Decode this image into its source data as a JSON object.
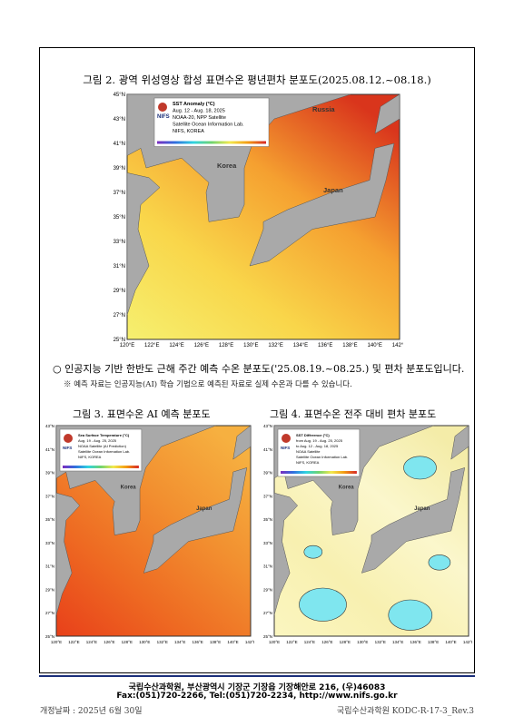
{
  "figure2": {
    "caption": "그림 2. 광역 위성영상 합성 표면수온 평년편차 분포도(2025.08.12.~08.18.)",
    "map": {
      "logo": "NIFS",
      "legend": [
        "SST Anomaly (°C)",
        "Aug. 12 - Aug. 18, 2025",
        "NOAA-20, NPP Satellite",
        "Satellite Ocean Information Lab.",
        "NIFS, KOREA"
      ],
      "places": [
        "Russia",
        "Korea",
        "Japan"
      ],
      "lat_ticks": [
        "45°N",
        "43°N",
        "41°N",
        "39°N",
        "37°N",
        "35°N",
        "33°N",
        "31°N",
        "29°N",
        "27°N",
        "25°N"
      ],
      "lon_ticks": [
        "120°E",
        "122°E",
        "124°E",
        "126°E",
        "128°E",
        "130°E",
        "132°E",
        "134°E",
        "136°E",
        "138°E",
        "140°E",
        "142°E"
      ]
    }
  },
  "bullet": {
    "text": "인공지능 기반 한반도 근해 주간 예측 수온 분포도('25.08.19.~08.25.) 및 편차 분포도입니다.",
    "note": "※ 예측 자료는 인공지능(AI) 학습 기법으로 예측된 자료로 실제 수온과 다를 수 있습니다."
  },
  "figure3": {
    "caption": "그림 3. 표면수온 AI 예측 분포도",
    "map": {
      "logo": "NIFS",
      "legend": [
        "Sea Surface Temperature (°C)",
        "Aug. 19 - Aug. 25, 2025",
        "NOAA Satellite (AI Prediction)",
        "Satellite Ocean Information Lab.",
        "NIFS, KOREA"
      ],
      "places": [
        "Korea",
        "Japan"
      ],
      "lat_ticks": [
        "43°N",
        "41°N",
        "39°N",
        "37°N",
        "35°N",
        "33°N",
        "31°N",
        "29°N",
        "27°N",
        "25°N"
      ],
      "lon_ticks": [
        "120°E",
        "122°E",
        "124°E",
        "126°E",
        "128°E",
        "130°E",
        "132°E",
        "134°E",
        "136°E",
        "138°E",
        "140°E",
        "142°E"
      ]
    }
  },
  "figure4": {
    "caption": "그림 4. 표면수온 전주 대비 편차 분포도",
    "map": {
      "logo": "NIFS",
      "legend": [
        "SST Difference (°C)",
        "from Aug. 19 - Aug. 25, 2025",
        "to Aug. 12 - Aug. 18, 2025",
        "NOAA Satellite",
        "Satellite Ocean Information Lab.",
        "NIFS, KOREA"
      ],
      "places": [
        "Korea",
        "Japan"
      ],
      "lat_ticks": [
        "43°N",
        "41°N",
        "39°N",
        "37°N",
        "35°N",
        "33°N",
        "31°N",
        "29°N",
        "27°N",
        "25°N"
      ],
      "lon_ticks": [
        "120°E",
        "122°E",
        "124°E",
        "126°E",
        "128°E",
        "130°E",
        "132°E",
        "134°E",
        "136°E",
        "138°E",
        "140°E",
        "142°E"
      ]
    }
  },
  "footer": {
    "line1": "국립수산과학원, 부산광역시 기장군 기장읍 기장해안로 216, (우)46083",
    "line2": "Fax:(051)720-2266, Tel:(051)720-2234, http://www.nifs.go.kr"
  },
  "revision_date": "개정날짜 : 2025년 6월 30일",
  "doc_id": "국립수산과학원 KODC-R-17-3_Rev.3"
}
